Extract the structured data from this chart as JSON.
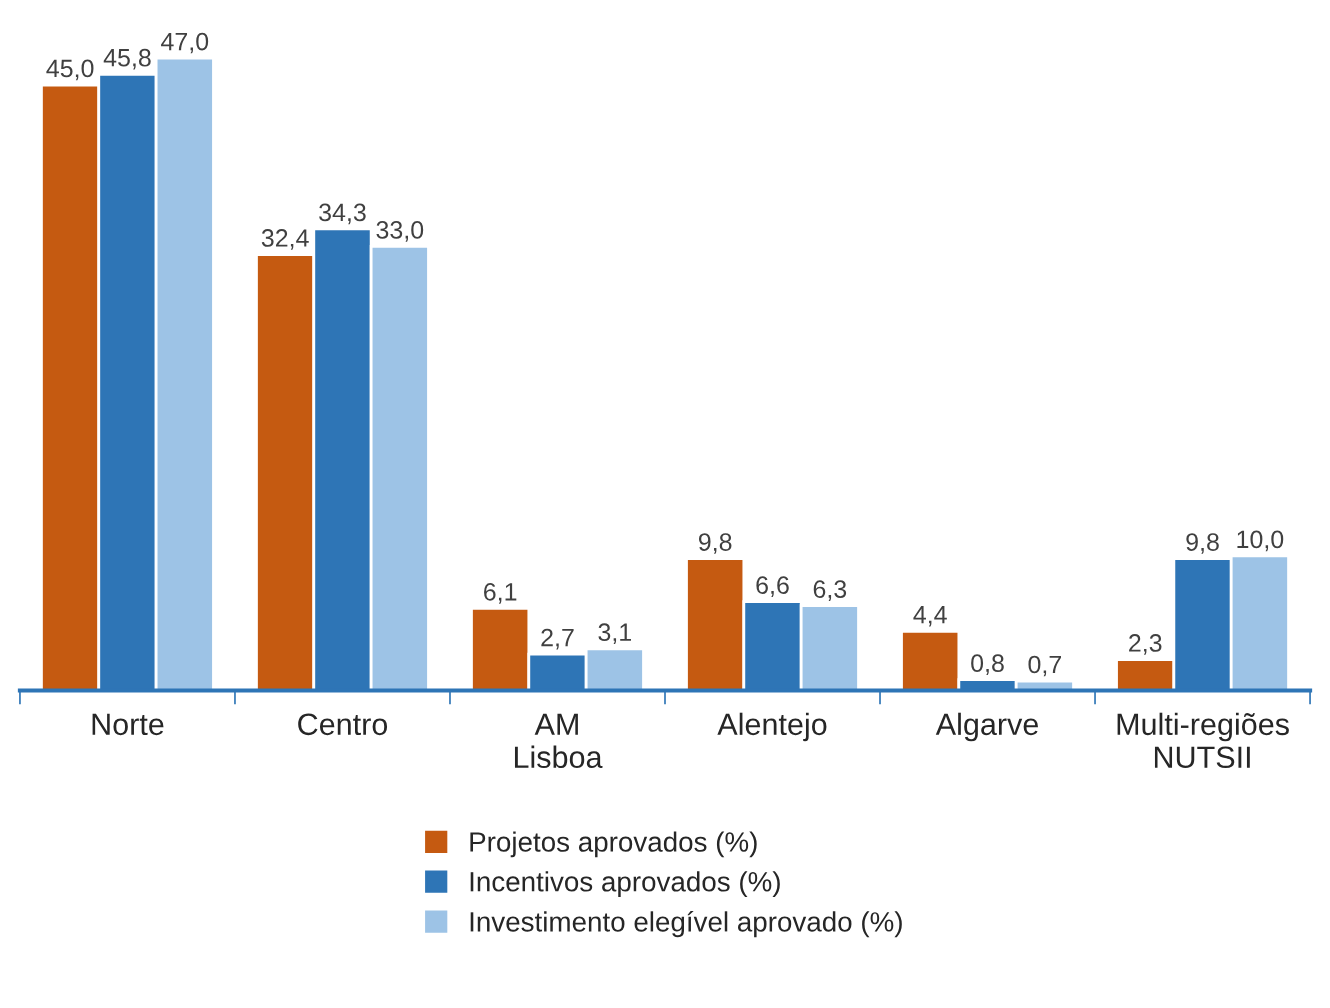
{
  "chart_data": {
    "type": "bar",
    "categories": [
      "Norte",
      "Centro",
      "AM\nLisboa",
      "Alentejo",
      "Algarve",
      "Multi-regiões\nNUTSII"
    ],
    "series": [
      {
        "name": "Projetos aprovados (%)",
        "color": "#c55a11",
        "values": [
          45.0,
          32.4,
          6.1,
          9.8,
          4.4,
          2.3
        ],
        "value_labels": [
          "45,0",
          "32,4",
          "6,1",
          "9,8",
          "4,4",
          "2,3"
        ]
      },
      {
        "name": "Incentivos aprovados (%)",
        "color": "#2e75b6",
        "values": [
          45.8,
          34.3,
          2.7,
          6.6,
          0.8,
          9.8
        ],
        "value_labels": [
          "45,8",
          "34,3",
          "2,7",
          "6,6",
          "0,8",
          "9,8"
        ]
      },
      {
        "name": "Investimento elegível aprovado (%)",
        "color": "#9dc3e6",
        "values": [
          47.0,
          33.0,
          3.1,
          6.3,
          0.7,
          10.0
        ],
        "value_labels": [
          "47,0",
          "33,0",
          "3,1",
          "6,3",
          "0,7",
          "10,0"
        ]
      }
    ],
    "legend": "bottom"
  }
}
